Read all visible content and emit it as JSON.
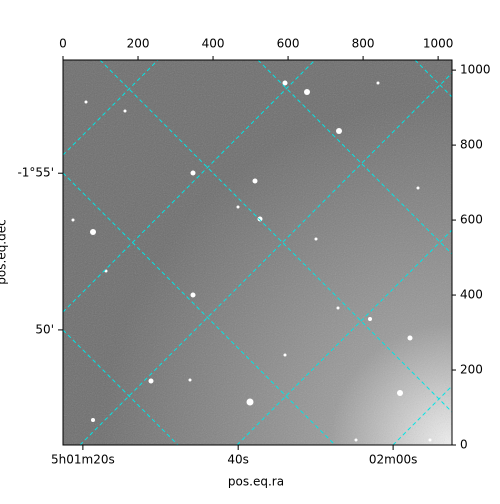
{
  "chart_data": {
    "type": "image",
    "xlabel": "pos.eq.ra",
    "ylabel": "pos.eq.dec",
    "xlim": [
      0,
      1037
    ],
    "ylim": [
      0,
      1027
    ],
    "xticks": [
      0,
      200,
      400,
      600,
      800,
      1000
    ],
    "yticks": [
      0,
      200,
      400,
      600,
      800,
      1000
    ],
    "ra_ticks": [
      {
        "value": 53,
        "label": "5h01m20s"
      },
      {
        "value": 467,
        "label": "40s"
      },
      {
        "value": 880,
        "label": "02m00s"
      }
    ],
    "dec_ticks": [
      {
        "value": 725,
        "label": "-1°55'"
      },
      {
        "value": 307,
        "label": "50'"
      }
    ],
    "grid_color": "#00e5e5"
  }
}
